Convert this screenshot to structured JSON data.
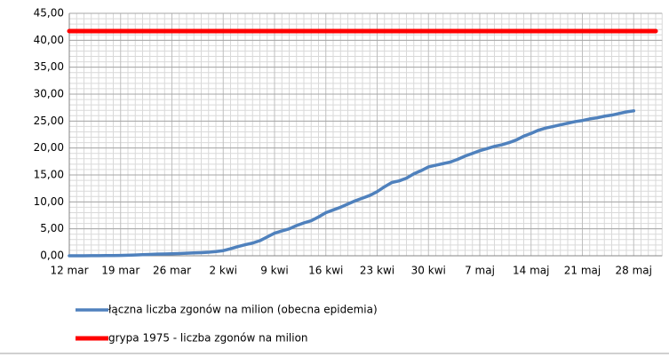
{
  "chart_data": {
    "type": "line",
    "categories": [
      "12 mar",
      null,
      null,
      null,
      null,
      null,
      null,
      "19 mar",
      null,
      null,
      null,
      null,
      null,
      null,
      "26 mar",
      null,
      null,
      null,
      null,
      null,
      null,
      "2 kwi",
      null,
      null,
      null,
      null,
      null,
      null,
      "9 kwi",
      null,
      null,
      null,
      null,
      null,
      null,
      "16 kwi",
      null,
      null,
      null,
      null,
      null,
      null,
      "23 kwi",
      null,
      null,
      null,
      null,
      null,
      null,
      "30 kwi",
      null,
      null,
      null,
      null,
      null,
      null,
      "7 maj",
      null,
      null,
      null,
      null,
      null,
      null,
      "14 maj",
      null,
      null,
      null,
      null,
      null,
      null,
      "21 maj",
      null,
      null,
      null,
      null,
      null,
      null,
      "28 maj",
      null,
      null,
      null
    ],
    "series": [
      {
        "name": "łączna liczba zgonów na milion (obecna epidemia)",
        "color": "#4f81bd",
        "values": [
          0.0,
          0.0,
          0.01,
          0.02,
          0.03,
          0.04,
          0.05,
          0.07,
          0.1,
          0.15,
          0.2,
          0.25,
          0.3,
          0.33,
          0.38,
          0.42,
          0.48,
          0.53,
          0.58,
          0.65,
          0.78,
          0.95,
          1.3,
          1.7,
          2.05,
          2.35,
          2.8,
          3.5,
          4.2,
          4.6,
          5.0,
          5.6,
          6.1,
          6.5,
          7.2,
          8.0,
          8.5,
          9.0,
          9.6,
          10.2,
          10.7,
          11.2,
          11.9,
          12.8,
          13.6,
          13.9,
          14.4,
          15.2,
          15.8,
          16.5,
          16.8,
          17.1,
          17.4,
          17.9,
          18.5,
          19.0,
          19.5,
          19.9,
          20.3,
          20.6,
          21.0,
          21.5,
          22.2,
          22.7,
          23.3,
          23.7,
          24.0,
          24.3,
          24.6,
          24.9,
          25.1,
          25.4,
          25.6,
          25.9,
          26.1,
          26.4,
          26.7,
          26.9,
          null,
          null,
          null
        ]
      },
      {
        "name": "grypa 1975 - liczba zgonów na milion",
        "color": "#ff0000",
        "values": [
          41.7,
          41.7,
          41.7,
          41.7,
          41.7,
          41.7,
          41.7,
          41.7,
          41.7,
          41.7,
          41.7,
          41.7,
          41.7,
          41.7,
          41.7,
          41.7,
          41.7,
          41.7,
          41.7,
          41.7,
          41.7,
          41.7,
          41.7,
          41.7,
          41.7,
          41.7,
          41.7,
          41.7,
          41.7,
          41.7,
          41.7,
          41.7,
          41.7,
          41.7,
          41.7,
          41.7,
          41.7,
          41.7,
          41.7,
          41.7,
          41.7,
          41.7,
          41.7,
          41.7,
          41.7,
          41.7,
          41.7,
          41.7,
          41.7,
          41.7,
          41.7,
          41.7,
          41.7,
          41.7,
          41.7,
          41.7,
          41.7,
          41.7,
          41.7,
          41.7,
          41.7,
          41.7,
          41.7,
          41.7,
          41.7,
          41.7,
          41.7,
          41.7,
          41.7,
          41.7,
          41.7,
          41.7,
          41.7,
          41.7,
          41.7,
          41.7,
          41.7,
          41.7,
          41.7,
          41.7,
          41.7
        ]
      }
    ],
    "ylim": [
      0,
      45
    ],
    "yticks": [
      {
        "value": 0,
        "label": "0,00"
      },
      {
        "value": 5,
        "label": "5,00"
      },
      {
        "value": 10,
        "label": "10,00"
      },
      {
        "value": 15,
        "label": "15,00"
      },
      {
        "value": 20,
        "label": "20,00"
      },
      {
        "value": 25,
        "label": "25,00"
      },
      {
        "value": 30,
        "label": "30,00"
      },
      {
        "value": 35,
        "label": "35,00"
      },
      {
        "value": 40,
        "label": "40,00"
      },
      {
        "value": 45,
        "label": "45,00"
      }
    ],
    "grid": true,
    "legend": "bottom"
  }
}
